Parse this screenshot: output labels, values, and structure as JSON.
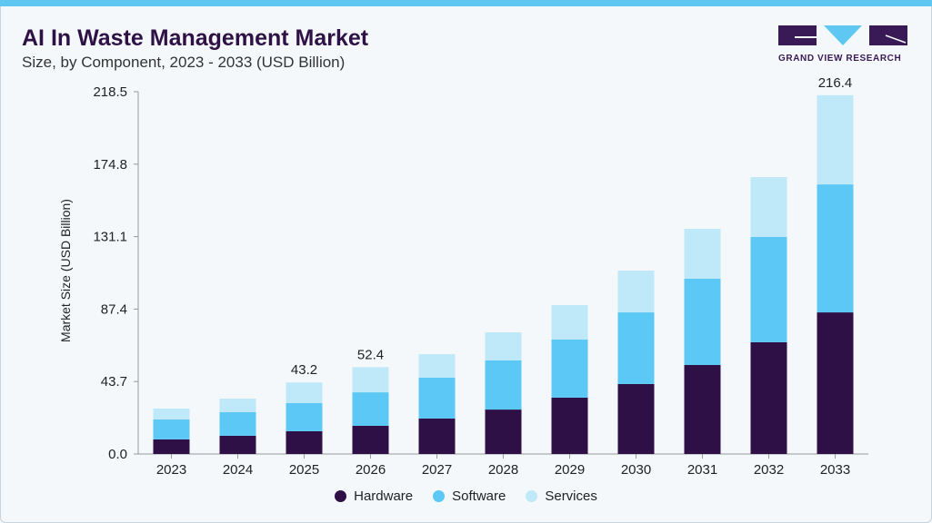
{
  "header": {
    "title": "AI In Waste Management Market",
    "subtitle": "Size, by Component, 2023 - 2033 (USD Billion)"
  },
  "logo": {
    "text": "GRAND VIEW RESEARCH"
  },
  "colors": {
    "Hardware": "#2f1046",
    "Software": "#5bc8f5",
    "Services": "#bfe8f8",
    "accent": "#5ec8f2"
  },
  "chart_data": {
    "type": "bar",
    "stacked": true,
    "title": "AI In Waste Management Market",
    "subtitle": "Size, by Component, 2023 - 2033 (USD Billion)",
    "xlabel": "",
    "ylabel": "Market Size (USD Billion)",
    "ylim": [
      0,
      218.5
    ],
    "yticks": [
      "0.0",
      "43.7",
      "87.4",
      "131.1",
      "174.8",
      "218.5"
    ],
    "categories": [
      "2023",
      "2024",
      "2025",
      "2026",
      "2027",
      "2028",
      "2029",
      "2030",
      "2031",
      "2032",
      "2033"
    ],
    "series": [
      {
        "name": "Hardware",
        "values": [
          8.8,
          11.0,
          13.7,
          17.0,
          21.4,
          26.8,
          34.0,
          42.2,
          53.7,
          67.4,
          85.4
        ]
      },
      {
        "name": "Software",
        "values": [
          12.0,
          14.2,
          17.0,
          20.2,
          24.6,
          29.6,
          35.0,
          43.2,
          52.0,
          63.5,
          77.2
        ]
      },
      {
        "name": "Services",
        "values": [
          6.6,
          8.2,
          12.5,
          15.2,
          14.2,
          17.0,
          20.8,
          25.2,
          30.1,
          36.1,
          53.8
        ]
      }
    ],
    "annotations": [
      {
        "category": "2025",
        "label": "43.2"
      },
      {
        "category": "2026",
        "label": "52.4"
      },
      {
        "category": "2033",
        "label": "216.4"
      }
    ],
    "legend": "bottom-center",
    "grid": false
  }
}
